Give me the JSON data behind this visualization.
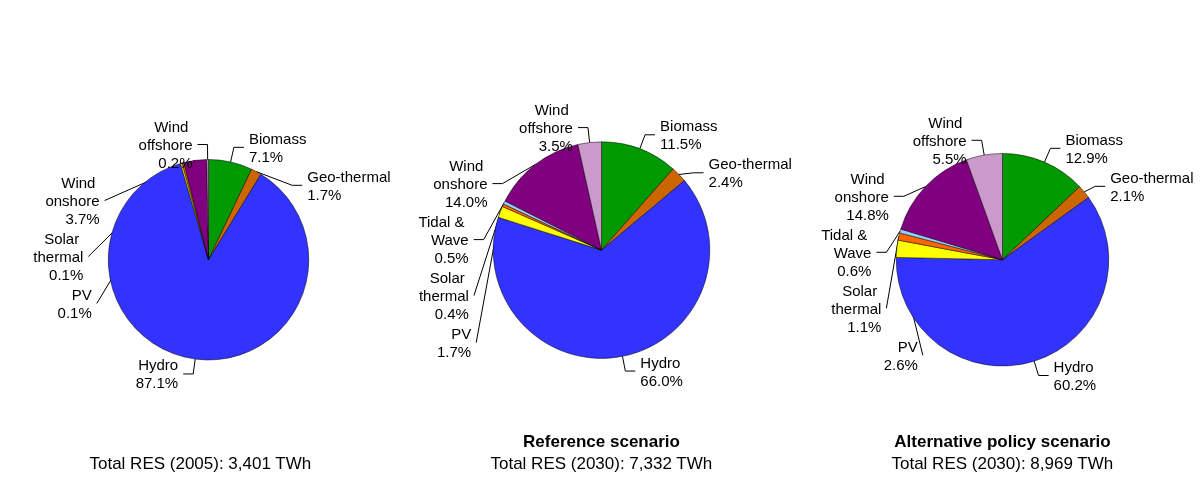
{
  "chart_data": [
    {
      "type": "pie",
      "categories": [
        "Biomass",
        "Geo-thermal",
        "Hydro",
        "PV",
        "Solar thermal",
        "Wind onshore",
        "Wind offshore"
      ],
      "values": [
        7.1,
        1.7,
        87.1,
        0.1,
        0.1,
        3.7,
        0.2
      ],
      "value_labels": [
        "7.1%",
        "1.7%",
        "87.1%",
        "0.1%",
        "0.1%",
        "3.7%",
        "0.2%"
      ],
      "colors": [
        "#009900",
        "#cc6600",
        "#3333ff",
        "#ffff00",
        "#ff6600",
        "#800080",
        "#cc99cc"
      ],
      "annotations": [
        "Total RES (2005): 3,401 TWh"
      ]
    },
    {
      "type": "pie",
      "title": "Reference scenario",
      "categories": [
        "Biomass",
        "Geo-thermal",
        "Hydro",
        "PV",
        "Solar thermal",
        "Tidal & Wave",
        "Wind onshore",
        "Wind offshore"
      ],
      "values": [
        11.5,
        2.4,
        66.0,
        1.7,
        0.4,
        0.5,
        14.0,
        3.5
      ],
      "value_labels": [
        "11.5%",
        "2.4%",
        "66.0%",
        "1.7%",
        "0.4%",
        "0.5%",
        "14.0%",
        "3.5%"
      ],
      "colors": [
        "#009900",
        "#cc6600",
        "#3333ff",
        "#ffff00",
        "#ff6600",
        "#99ccff",
        "#800080",
        "#cc99cc"
      ],
      "annotations": [
        "Total RES (2030): 7,332 TWh"
      ]
    },
    {
      "type": "pie",
      "title": "Alternative policy scenario",
      "categories": [
        "Biomass",
        "Geo-thermal",
        "Hydro",
        "PV",
        "Solar thermal",
        "Tidal & Wave",
        "Wind onshore",
        "Wind offshore"
      ],
      "values": [
        12.9,
        2.1,
        60.2,
        2.6,
        1.1,
        0.6,
        14.8,
        5.5
      ],
      "value_labels": [
        "12.9%",
        "2.1%",
        "60.2%",
        "2.6%",
        "1.1%",
        "0.6%",
        "14.8%",
        "5.5%"
      ],
      "colors": [
        "#009900",
        "#cc6600",
        "#3333ff",
        "#ffff00",
        "#ff6600",
        "#99ccff",
        "#800080",
        "#cc99cc"
      ],
      "annotations": [
        "Total RES (2030): 8,969 TWh"
      ]
    }
  ]
}
